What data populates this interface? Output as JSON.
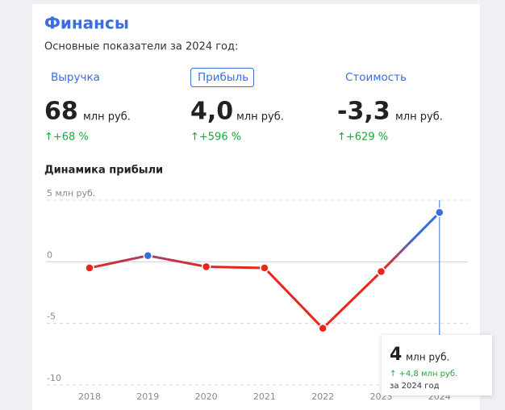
{
  "header": {
    "title": "Финансы",
    "subtitle": "Основные показатели за 2024 год:"
  },
  "metrics": [
    {
      "tab": "Выручка",
      "value": "68",
      "unit": "млн руб.",
      "change": "↑+68 %"
    },
    {
      "tab": "Прибыль",
      "value": "4,0",
      "unit": "млн руб.",
      "change": "↑+596 %"
    },
    {
      "tab": "Стоимость",
      "value": "-3,3",
      "unit": "млн руб.",
      "change": "↑+629 %"
    }
  ],
  "chart_data": {
    "type": "line",
    "title": "Динамика прибыли",
    "categories": [
      "2018",
      "2019",
      "2020",
      "2021",
      "2022",
      "2023",
      "2024"
    ],
    "series": [
      {
        "name": "Прибыль",
        "color": "#e8261c",
        "values": [
          -0.5,
          0.5,
          -0.4,
          -0.5,
          -5.4,
          -0.8,
          4.0
        ]
      }
    ],
    "positive_color": "#3a6de0",
    "ylim": [
      -10,
      5
    ],
    "yticks": [
      {
        "value": 5,
        "label": "5 млн руб."
      },
      0,
      -5,
      -10
    ],
    "grid": true
  },
  "tooltip": {
    "value": "4",
    "unit": "млн руб.",
    "change": "↑ +4,8 млн руб.",
    "period": "за 2024 год"
  }
}
